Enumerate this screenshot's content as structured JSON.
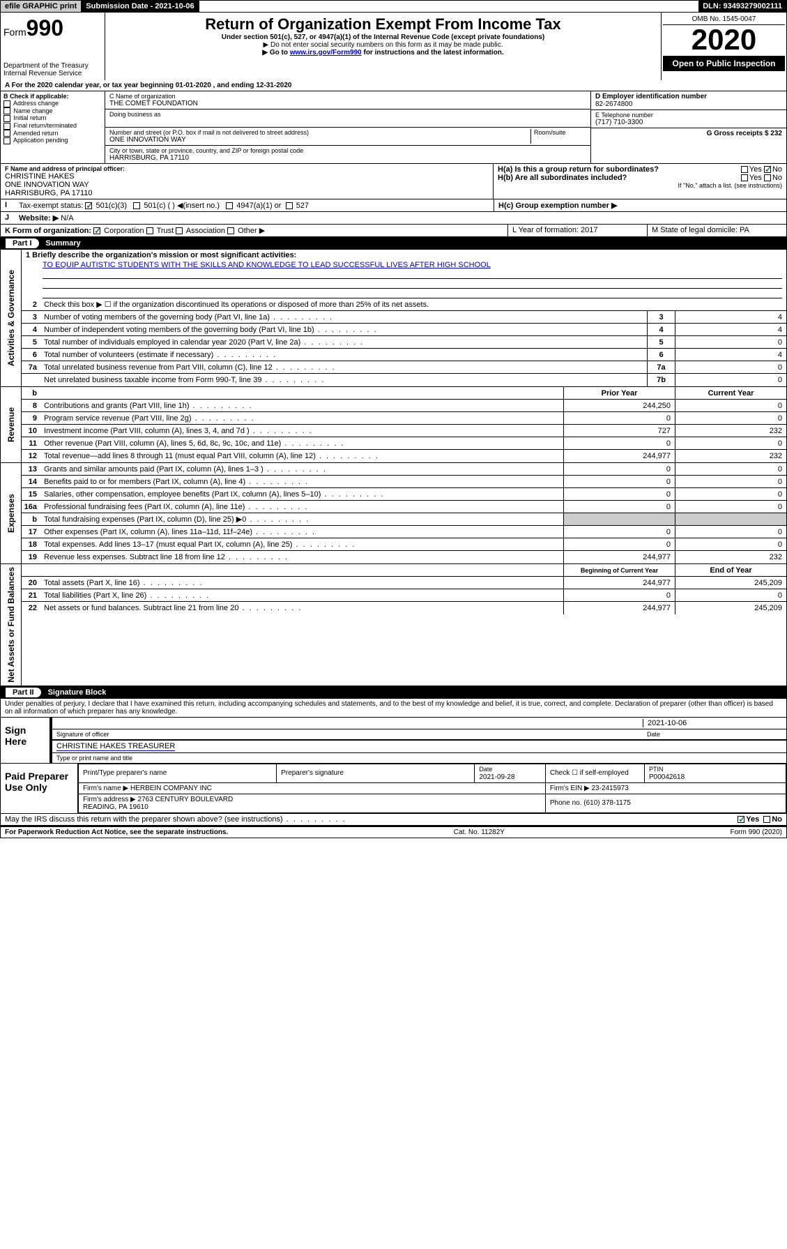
{
  "top": {
    "efile": "efile GRAPHIC print",
    "submission_label": "Submission Date - 2021-10-06",
    "dln": "DLN: 93493279002111"
  },
  "header": {
    "form": "990",
    "form_pre": "Form",
    "title": "Return of Organization Exempt From Income Tax",
    "sub1": "Under section 501(c), 527, or 4947(a)(1) of the Internal Revenue Code (except private foundations)",
    "sub2": "▶ Do not enter social security numbers on this form as it may be made public.",
    "sub3_pre": "▶ Go to ",
    "sub3_link": "www.irs.gov/Form990",
    "sub3_post": " for instructions and the latest information.",
    "dept": "Department of the Treasury\nInternal Revenue Service",
    "omb": "OMB No. 1545-0047",
    "year": "2020",
    "inspection": "Open to Public Inspection"
  },
  "lineA": "A For the 2020 calendar year, or tax year beginning 01-01-2020   , and ending 12-31-2020",
  "boxB": {
    "label": "B Check if applicable:",
    "items": [
      "Address change",
      "Name change",
      "Initial return",
      "Final return/terminated",
      "Amended return",
      "Application pending"
    ]
  },
  "boxC": {
    "name_label": "C Name of organization",
    "name": "THE COMET FOUNDATION",
    "dba_label": "Doing business as",
    "addr_label": "Number and street (or P.O. box if mail is not delivered to street address)",
    "room_label": "Room/suite",
    "addr": "ONE INNOVATION WAY",
    "city_label": "City or town, state or province, country, and ZIP or foreign postal code",
    "city": "HARRISBURG, PA  17110"
  },
  "boxD": {
    "label": "D Employer identification number",
    "val": "82-2674800"
  },
  "boxE": {
    "label": "E Telephone number",
    "val": "(717) 710-3300"
  },
  "boxG": {
    "label": "G Gross receipts $ 232"
  },
  "boxF": {
    "label": "F  Name and address of principal officer:",
    "name": "CHRISTINE HAKES",
    "addr1": "ONE INNOVATION WAY",
    "addr2": "HARRISBURG, PA  17110"
  },
  "boxH": {
    "a": "H(a)  Is this a group return for subordinates?",
    "b": "H(b)  Are all subordinates included?",
    "note": "If \"No,\" attach a list. (see instructions)",
    "c": "H(c)  Group exemption number ▶",
    "yes": "Yes",
    "no": "No"
  },
  "taxexempt": {
    "label": "Tax-exempt status:",
    "c3": "501(c)(3)",
    "c": "501(c) (  ) ◀(insert no.)",
    "a1": "4947(a)(1) or",
    "s527": "527"
  },
  "website": {
    "label": "Website: ▶",
    "val": "N/A"
  },
  "formorg": {
    "label": "K Form of organization:",
    "corp": "Corporation",
    "trust": "Trust",
    "assoc": "Association",
    "other": "Other ▶"
  },
  "yearform": {
    "label": "L Year of formation: 2017"
  },
  "domicile": {
    "label": "M State of legal domicile: PA"
  },
  "part1": {
    "num": "Part I",
    "title": "Summary"
  },
  "summary": {
    "line1_label": "1 Briefly describe the organization's mission or most significant activities:",
    "mission": "TO EQUIP AUTISTIC STUDENTS WITH THE SKILLS AND KNOWLEDGE TO LEAD SUCCESSFUL LIVES AFTER HIGH SCHOOL",
    "line2": "Check this box ▶ ☐  if the organization discontinued its operations or disposed of more than 25% of its net assets.",
    "rows_gov": [
      {
        "n": "3",
        "label": "Number of voting members of the governing body (Part VI, line 1a)",
        "box": "3",
        "val": "4"
      },
      {
        "n": "4",
        "label": "Number of independent voting members of the governing body (Part VI, line 1b)",
        "box": "4",
        "val": "4"
      },
      {
        "n": "5",
        "label": "Total number of individuals employed in calendar year 2020 (Part V, line 2a)",
        "box": "5",
        "val": "0"
      },
      {
        "n": "6",
        "label": "Total number of volunteers (estimate if necessary)",
        "box": "6",
        "val": "4"
      },
      {
        "n": "7a",
        "label": "Total unrelated business revenue from Part VIII, column (C), line 12",
        "box": "7a",
        "val": "0"
      },
      {
        "n": "",
        "label": "Net unrelated business taxable income from Form 990-T, line 39",
        "box": "7b",
        "val": "0"
      }
    ],
    "hdr_prior": "Prior Year",
    "hdr_current": "Current Year",
    "rows_rev": [
      {
        "n": "8",
        "label": "Contributions and grants (Part VIII, line 1h)",
        "p": "244,250",
        "c": "0"
      },
      {
        "n": "9",
        "label": "Program service revenue (Part VIII, line 2g)",
        "p": "0",
        "c": "0"
      },
      {
        "n": "10",
        "label": "Investment income (Part VIII, column (A), lines 3, 4, and 7d )",
        "p": "727",
        "c": "232"
      },
      {
        "n": "11",
        "label": "Other revenue (Part VIII, column (A), lines 5, 6d, 8c, 9c, 10c, and 11e)",
        "p": "0",
        "c": "0"
      },
      {
        "n": "12",
        "label": "Total revenue—add lines 8 through 11 (must equal Part VIII, column (A), line 12)",
        "p": "244,977",
        "c": "232"
      }
    ],
    "rows_exp": [
      {
        "n": "13",
        "label": "Grants and similar amounts paid (Part IX, column (A), lines 1–3 )",
        "p": "0",
        "c": "0"
      },
      {
        "n": "14",
        "label": "Benefits paid to or for members (Part IX, column (A), line 4)",
        "p": "0",
        "c": "0"
      },
      {
        "n": "15",
        "label": "Salaries, other compensation, employee benefits (Part IX, column (A), lines 5–10)",
        "p": "0",
        "c": "0"
      },
      {
        "n": "16a",
        "label": "Professional fundraising fees (Part IX, column (A), line 11e)",
        "p": "0",
        "c": "0"
      },
      {
        "n": "b",
        "label": "Total fundraising expenses (Part IX, column (D), line 25) ▶0",
        "p": "",
        "c": ""
      },
      {
        "n": "17",
        "label": "Other expenses (Part IX, column (A), lines 11a–11d, 11f–24e)",
        "p": "0",
        "c": "0"
      },
      {
        "n": "18",
        "label": "Total expenses. Add lines 13–17 (must equal Part IX, column (A), line 25)",
        "p": "0",
        "c": "0"
      },
      {
        "n": "19",
        "label": "Revenue less expenses. Subtract line 18 from line 12",
        "p": "244,977",
        "c": "232"
      }
    ],
    "hdr_begin": "Beginning of Current Year",
    "hdr_end": "End of Year",
    "rows_net": [
      {
        "n": "20",
        "label": "Total assets (Part X, line 16)",
        "p": "244,977",
        "c": "245,209"
      },
      {
        "n": "21",
        "label": "Total liabilities (Part X, line 26)",
        "p": "0",
        "c": "0"
      },
      {
        "n": "22",
        "label": "Net assets or fund balances. Subtract line 21 from line 20",
        "p": "244,977",
        "c": "245,209"
      }
    ],
    "side_gov": "Activities & Governance",
    "side_rev": "Revenue",
    "side_exp": "Expenses",
    "side_net": "Net Assets or Fund Balances"
  },
  "part2": {
    "num": "Part II",
    "title": "Signature Block"
  },
  "sig": {
    "perjury": "Under penalties of perjury, I declare that I have examined this return, including accompanying schedules and statements, and to the best of my knowledge and belief, it is true, correct, and complete. Declaration of preparer (other than officer) is based on all information of which preparer has any knowledge.",
    "sign_here": "Sign Here",
    "date": "2021-10-06",
    "date_label": "Date",
    "sig_officer": "Signature of officer",
    "name_title": "CHRISTINE HAKES  TREASURER",
    "type_name": "Type or print name and title"
  },
  "paid": {
    "label": "Paid Preparer Use Only",
    "h1": "Print/Type preparer's name",
    "h2": "Preparer's signature",
    "h3": "Date",
    "date": "2021-09-28",
    "h4": "Check ☐ if self-employed",
    "h5": "PTIN",
    "ptin": "P00042618",
    "firm_name_l": "Firm's name    ▶",
    "firm_name": "HERBEIN COMPANY INC",
    "firm_ein_l": "Firm's EIN ▶",
    "firm_ein": "23-2415973",
    "firm_addr_l": "Firm's address ▶",
    "firm_addr": "2763 CENTURY BOULEVARD\nREADING, PA  19610",
    "phone_l": "Phone no.",
    "phone": "(610) 378-1175"
  },
  "discuss": {
    "q": "May the IRS discuss this return with the preparer shown above? (see instructions)",
    "yes": "Yes",
    "no": "No"
  },
  "footer": {
    "left": "For Paperwork Reduction Act Notice, see the separate instructions.",
    "mid": "Cat. No. 11282Y",
    "right": "Form 990 (2020)"
  }
}
